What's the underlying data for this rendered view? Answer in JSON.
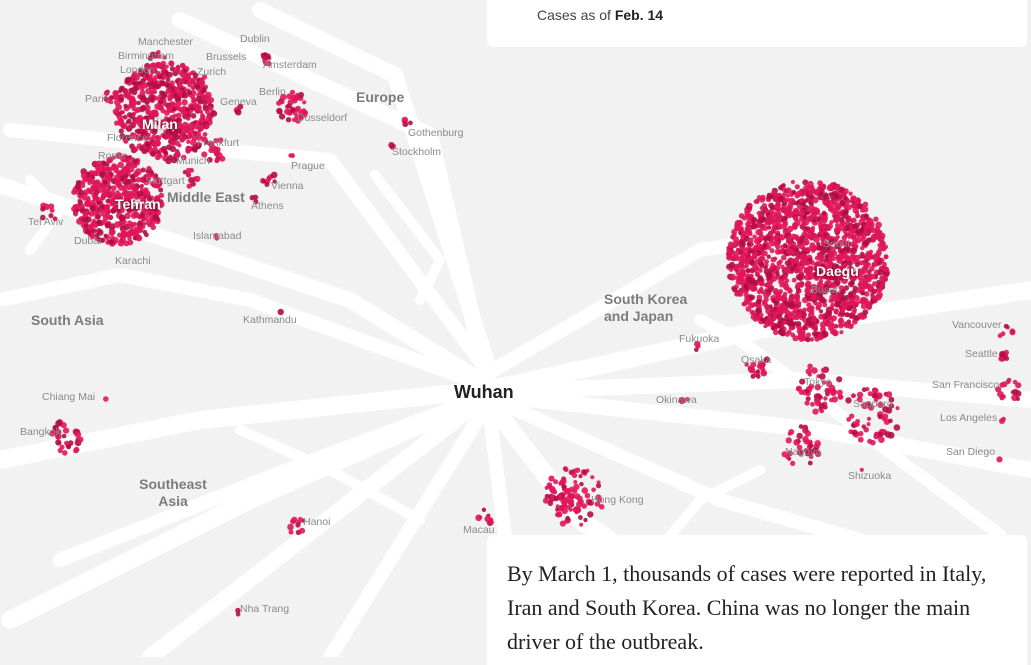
{
  "legend": {
    "prefix": "Cases as of",
    "date": "Feb. 14"
  },
  "caption": {
    "text": "By March 1, thousands of cases were reported in Italy, Iran and South Korea. China was no longer the main driver of the outbreak."
  },
  "center_label": "Wuhan",
  "regions": {
    "europe": "Europe",
    "middle_east": "Middle East",
    "south_asia": "South Asia",
    "southeast_asia_1": "Southeast",
    "southeast_asia_2": "Asia",
    "korea_japan_1": "South Korea",
    "korea_japan_2": "and Japan"
  },
  "hubs": {
    "milan": "Milan",
    "tehran": "Tehran",
    "daegu": "Daegu"
  },
  "cities": {
    "dublin": "Dublin",
    "manchester": "Manchester",
    "birmingham": "Birmingham",
    "brussels": "Brussels",
    "amsterdam": "Amsterdam",
    "london": "London",
    "zurich": "Zurich",
    "paris": "Paris",
    "geneva": "Geneva",
    "berlin": "Berlin",
    "dusseldorf": "Dusseldorf",
    "florence": "Florence",
    "frankfurt": "Frankfurt",
    "rome": "Rome",
    "munich": "Munich",
    "stuttgart": "Stuttgart",
    "prague": "Prague",
    "vienna": "Vienna",
    "athens": "Athens",
    "gothenburg": "Gothenburg",
    "stockholm": "Stockholm",
    "tel_aviv": "Tel Aviv",
    "dubai": "Dubai",
    "islamabad": "Islamabad",
    "karachi": "Karachi",
    "kathmandu": "Kathmandu",
    "chiang_mai": "Chiang Mai",
    "bangkok": "Bangkok",
    "hanoi": "Hanoi",
    "nha_trang": "Nha Trang",
    "macau": "Macau",
    "hong_kong": "Hong Kong",
    "seoul": "Seoul",
    "busan": "Busan",
    "fukuoka": "Fukuoka",
    "osaka": "Osaka",
    "okinawa": "Okinawa",
    "tokyo": "Tokyo",
    "sapporo": "Sapporo",
    "nagoya": "Nagoya",
    "shizuoka": "Shizuoka",
    "vancouver": "Vancouver",
    "seattle": "Seattle",
    "san_francisco": "San Francisco",
    "los_angeles": "Los Angeles",
    "san_diego": "San Diego"
  },
  "colors": {
    "dot": "#e0165a",
    "dot_alt": "#b30c45",
    "route": "#ffffff",
    "background": "#f2f2f2"
  }
}
